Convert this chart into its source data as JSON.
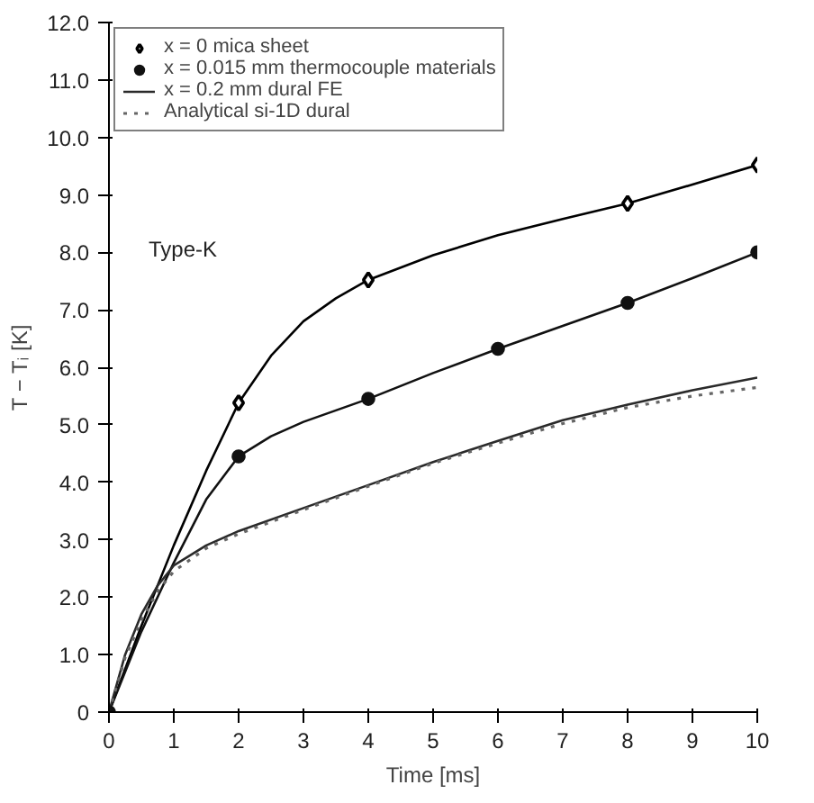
{
  "chart_data": {
    "type": "line",
    "xlabel": "Time [ms]",
    "ylabel": "T − Tᵢ [K]",
    "annotations": [
      "Type-K"
    ],
    "xlim": [
      0,
      10
    ],
    "xticks": [
      0,
      1,
      2,
      3,
      4,
      5,
      6,
      7,
      8,
      9,
      10
    ],
    "ylim": [
      0,
      12
    ],
    "yticks": [
      0,
      {
        "value": 1,
        "label": "1.0"
      },
      {
        "value": 2,
        "label": "2.0"
      },
      {
        "value": 3,
        "label": "3.0"
      },
      {
        "value": 4,
        "label": "4.0"
      },
      {
        "value": 5,
        "label": "5.0"
      },
      {
        "value": 6,
        "label": "6.0"
      },
      {
        "value": 7,
        "label": "7.0"
      },
      {
        "value": 8,
        "label": "8.0"
      },
      {
        "value": 9,
        "label": "9.0"
      },
      {
        "value": 10,
        "label": "10.0"
      },
      {
        "value": 11,
        "label": "11.0"
      },
      {
        "value": 12,
        "label": "12.0"
      }
    ],
    "grid": false,
    "legend": "top left",
    "series": [
      {
        "name": "x = 0 mica sheet",
        "type": "scatter",
        "color": "#000000",
        "marker": "diamond",
        "x": [
          2,
          4,
          8,
          10
        ],
        "values": [
          5.38,
          7.52,
          8.85,
          9.52
        ]
      },
      {
        "name": "x = 0.015 mm thermocouple materials",
        "type": "scatter",
        "color": "#111111",
        "marker": "circle",
        "x": [
          0,
          2,
          4,
          6,
          8,
          10
        ],
        "values": [
          0,
          4.45,
          5.45,
          6.32,
          7.12,
          8.0
        ]
      },
      {
        "color": "#000000",
        "line_style": "solid",
        "x": [
          0,
          0.5,
          1,
          1.5,
          2,
          2.5,
          3,
          3.5,
          4,
          5,
          6,
          7,
          8,
          9,
          10
        ],
        "values": [
          0,
          1.5,
          2.9,
          4.2,
          5.38,
          6.2,
          6.8,
          7.2,
          7.52,
          7.95,
          8.3,
          8.58,
          8.85,
          9.18,
          9.52
        ]
      },
      {
        "color": "#111111",
        "line_style": "solid",
        "x": [
          0,
          0.5,
          1,
          1.5,
          2,
          2.5,
          3,
          3.5,
          4,
          5,
          6,
          7,
          8,
          9,
          10
        ],
        "values": [
          0,
          1.4,
          2.6,
          3.7,
          4.45,
          4.8,
          5.05,
          5.25,
          5.45,
          5.9,
          6.32,
          6.72,
          7.12,
          7.55,
          8.0
        ]
      },
      {
        "name": "x = 0.2 mm dural FE",
        "color": "#2a2a2a",
        "line_style": "solid",
        "x": [
          0,
          0.25,
          0.5,
          0.75,
          1,
          1.5,
          2,
          3,
          4,
          5,
          6,
          7,
          8,
          9,
          10
        ],
        "values": [
          0,
          1.0,
          1.7,
          2.2,
          2.55,
          2.9,
          3.15,
          3.55,
          3.95,
          4.35,
          4.72,
          5.08,
          5.35,
          5.6,
          5.82
        ]
      },
      {
        "name": "Analytical si-1D dural",
        "color": "#666666",
        "line_style": "dotted",
        "x": [
          0,
          0.25,
          0.5,
          0.75,
          1,
          1.5,
          2,
          3,
          4,
          5,
          6,
          7,
          8,
          9,
          10
        ],
        "values": [
          0,
          0.95,
          1.6,
          2.1,
          2.45,
          2.85,
          3.1,
          3.52,
          3.93,
          4.33,
          4.68,
          5.02,
          5.3,
          5.5,
          5.65
        ]
      }
    ]
  }
}
